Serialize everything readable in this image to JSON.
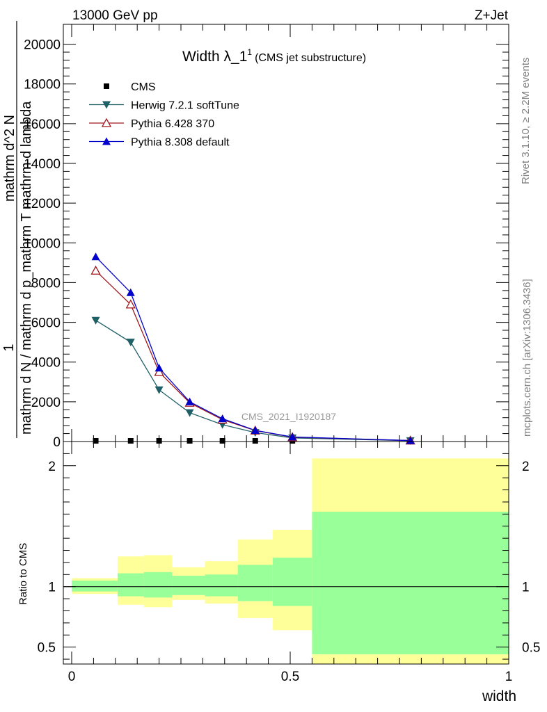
{
  "header": {
    "energy_label": "13000 GeV pp",
    "process_label": "Z+Jet"
  },
  "side": {
    "rivet_label": "Rivet 3.1.10, ≥ 2.2M events",
    "mcplots_label": "mcplots.cern.ch [arXiv:1306.3436]"
  },
  "watermark": "CMS_2021_I1920187",
  "chart_data": [
    {
      "type": "line",
      "title": "Width λ_1",
      "title_superscript": "1",
      "subtitle": "(CMS jet substructure)",
      "ylabel_numerator": "1",
      "ylabel_denominator": "mathrm d N / mathrm d p_mathrm T mathrm d lambda",
      "ylabel_top": "mathrm d^2 N",
      "xlim": [
        0,
        1
      ],
      "ylim": [
        0,
        21000
      ],
      "yticks": [
        0,
        2000,
        4000,
        6000,
        8000,
        10000,
        12000,
        14000,
        16000,
        18000,
        20000
      ],
      "ytick_labels": [
        "0",
        "2000",
        "4000",
        "6000",
        "8000",
        "10000",
        "12000",
        "14000",
        "16000",
        "18000",
        "20000"
      ],
      "legend": [
        "CMS",
        "Herwig 7.2.1 softTune",
        "Pythia 6.428 370",
        "Pythia 8.308 default"
      ],
      "legend_position": "top-left",
      "series": [
        {
          "name": "CMS",
          "color": "#000000",
          "marker": "square",
          "x": [
            0.055,
            0.135,
            0.2,
            0.27,
            0.345,
            0.42,
            0.505,
            0.775
          ],
          "y": [
            0,
            0,
            0,
            0,
            0,
            0,
            0,
            0
          ]
        },
        {
          "name": "Herwig 7.2.1 softTune",
          "color": "#1f5f66",
          "marker": "triangle-down",
          "x": [
            0.055,
            0.135,
            0.2,
            0.27,
            0.345,
            0.42,
            0.505,
            0.775
          ],
          "y": [
            6100,
            5000,
            2600,
            1450,
            850,
            450,
            180,
            40
          ]
        },
        {
          "name": "Pythia 6.428 370",
          "color": "#a0161c",
          "marker": "triangle-open",
          "x": [
            0.055,
            0.135,
            0.2,
            0.27,
            0.345,
            0.42,
            0.505,
            0.775
          ],
          "y": [
            8600,
            6900,
            3500,
            1950,
            1100,
            550,
            220,
            50
          ]
        },
        {
          "name": "Pythia 8.308 default",
          "color": "#0000cc",
          "marker": "triangle-up",
          "x": [
            0.055,
            0.135,
            0.2,
            0.27,
            0.345,
            0.42,
            0.505,
            0.775
          ],
          "y": [
            9300,
            7500,
            3700,
            2000,
            1150,
            560,
            230,
            50
          ]
        }
      ]
    },
    {
      "type": "area",
      "ylabel": "Ratio to CMS",
      "xlabel": "width",
      "xlim": [
        0,
        1
      ],
      "ylim": [
        0.36,
        2.2
      ],
      "xticks": [
        0,
        0.5,
        1
      ],
      "xtick_labels": [
        "0",
        "0.5",
        "1"
      ],
      "yticks": [
        0.5,
        1,
        2
      ],
      "ytick_labels": [
        "0.5",
        "1",
        "2"
      ],
      "bins": [
        {
          "x0": 0.0,
          "x1": 0.105,
          "inner": [
            0.96,
            1.05
          ],
          "outer": [
            0.94,
            1.07
          ]
        },
        {
          "x0": 0.105,
          "x1": 0.165,
          "inner": [
            0.92,
            1.11
          ],
          "outer": [
            0.85,
            1.25
          ]
        },
        {
          "x0": 0.165,
          "x1": 0.23,
          "inner": [
            0.91,
            1.12
          ],
          "outer": [
            0.83,
            1.26
          ]
        },
        {
          "x0": 0.23,
          "x1": 0.305,
          "inner": [
            0.93,
            1.09
          ],
          "outer": [
            0.89,
            1.16
          ]
        },
        {
          "x0": 0.305,
          "x1": 0.38,
          "inner": [
            0.92,
            1.1
          ],
          "outer": [
            0.86,
            1.21
          ]
        },
        {
          "x0": 0.38,
          "x1": 0.46,
          "inner": [
            0.88,
            1.18
          ],
          "outer": [
            0.74,
            1.39
          ]
        },
        {
          "x0": 0.46,
          "x1": 0.55,
          "inner": [
            0.84,
            1.24
          ],
          "outer": [
            0.64,
            1.47
          ]
        },
        {
          "x0": 0.55,
          "x1": 1.0,
          "inner": [
            0.44,
            1.62
          ],
          "outer": [
            0.36,
            2.06
          ]
        }
      ]
    }
  ]
}
